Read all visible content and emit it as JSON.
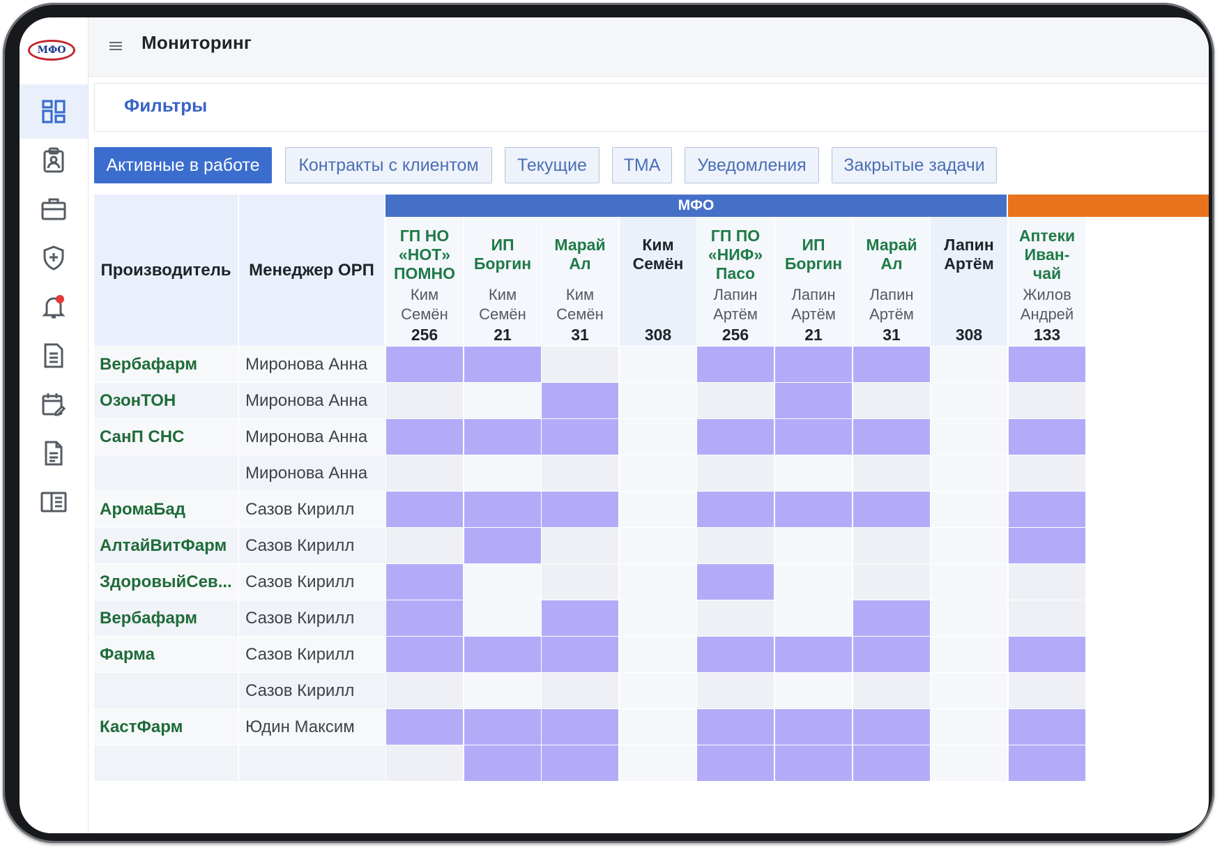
{
  "brand": {
    "logo_text": "МФО"
  },
  "header": {
    "title": "Мониторинг"
  },
  "filters": {
    "label": "Фильтры"
  },
  "tabs": [
    {
      "label": "Активные в работе",
      "active": true
    },
    {
      "label": "Контракты с клиентом",
      "active": false
    },
    {
      "label": "Текущие",
      "active": false
    },
    {
      "label": "ТМА",
      "active": false
    },
    {
      "label": "Уведомления",
      "active": false
    },
    {
      "label": "Закрытые задачи",
      "active": false
    }
  ],
  "sidebar": {
    "items": [
      {
        "icon": "dashboard-icon",
        "active": true
      },
      {
        "icon": "clipboard-user-icon",
        "active": false
      },
      {
        "icon": "briefcase-icon",
        "active": false
      },
      {
        "icon": "shield-plus-icon",
        "active": false
      },
      {
        "icon": "bell-icon",
        "active": false,
        "badge": true
      },
      {
        "icon": "document-icon",
        "active": false
      },
      {
        "icon": "calendar-edit-icon",
        "active": false
      },
      {
        "icon": "file-text-icon",
        "active": false
      },
      {
        "icon": "book-open-icon",
        "active": false
      }
    ]
  },
  "colors": {
    "accent": "#3b6dce",
    "group_mfo": "#4570c8",
    "group_next": "#e8731c",
    "marked_cell": "#b3abf8",
    "producer_text": "#1f6b3a"
  },
  "table": {
    "headers": {
      "producer": "Производитель",
      "manager": "Менеджер ОРП"
    },
    "groups": [
      {
        "label": "МФО",
        "color": "#4570c8"
      },
      {
        "label": "",
        "color": "#e8731c"
      }
    ],
    "columns": [
      {
        "name": "ГП НО\n«НОТ»\nПОМНО",
        "sub": "Ким\nСемён",
        "count": "256",
        "total": false
      },
      {
        "name": "ИП\nБоргин",
        "sub": "Ким\nСемён",
        "count": "21",
        "total": false
      },
      {
        "name": "Марай\nАл",
        "sub": "Ким\nСемён",
        "count": "31",
        "total": false
      },
      {
        "name": "Ким\nСемён",
        "sub": "",
        "count": "308",
        "total": true
      },
      {
        "name": "ГП ПО\n«НИФ»\nПасо",
        "sub": "Лапин\nАртём",
        "count": "256",
        "total": false
      },
      {
        "name": "ИП\nБоргин",
        "sub": "Лапин\nАртём",
        "count": "21",
        "total": false
      },
      {
        "name": "Марай\nАл",
        "sub": "Лапин\nАртём",
        "count": "31",
        "total": false
      },
      {
        "name": "Лапин\nАртём",
        "sub": "",
        "count": "308",
        "total": true
      },
      {
        "name": "Аптеки\nИван-\nчай",
        "sub": "Жилов\nАндрей",
        "count": "133",
        "total": false
      }
    ],
    "rows": [
      {
        "producer": "Вербафарм",
        "manager": "Миронова Анна",
        "marks": [
          1,
          1,
          0,
          0,
          1,
          1,
          1,
          0,
          1
        ]
      },
      {
        "producer": "ОзонТОН",
        "manager": "Миронова Анна",
        "marks": [
          0,
          0,
          1,
          0,
          0,
          1,
          0,
          0,
          0
        ]
      },
      {
        "producer": "СанП СНС",
        "manager": "Миронова Анна",
        "marks": [
          1,
          1,
          1,
          0,
          1,
          1,
          1,
          0,
          1
        ]
      },
      {
        "producer": "",
        "manager": "Миронова Анна",
        "marks": [
          0,
          0,
          0,
          0,
          0,
          0,
          0,
          0,
          0
        ]
      },
      {
        "producer": "АромаБад",
        "manager": "Сазов Кирилл",
        "marks": [
          1,
          1,
          1,
          0,
          1,
          1,
          1,
          0,
          1
        ]
      },
      {
        "producer": "АлтайВитФарм",
        "manager": "Сазов Кирилл",
        "marks": [
          0,
          1,
          0,
          0,
          0,
          0,
          0,
          0,
          1
        ]
      },
      {
        "producer": "ЗдоровыйСев...",
        "manager": "Сазов Кирилл",
        "marks": [
          1,
          0,
          0,
          0,
          1,
          0,
          0,
          0,
          0
        ]
      },
      {
        "producer": "Вербафарм",
        "manager": "Сазов Кирилл",
        "marks": [
          1,
          0,
          1,
          0,
          0,
          0,
          1,
          0,
          0
        ]
      },
      {
        "producer": "Фарма",
        "manager": "Сазов Кирилл",
        "marks": [
          1,
          1,
          1,
          0,
          1,
          1,
          1,
          0,
          1
        ]
      },
      {
        "producer": "",
        "manager": "Сазов Кирилл",
        "marks": [
          0,
          0,
          0,
          0,
          0,
          0,
          0,
          0,
          0
        ]
      },
      {
        "producer": "КастФарм",
        "manager": "Юдин Максим",
        "marks": [
          1,
          1,
          1,
          0,
          1,
          1,
          1,
          0,
          1
        ]
      },
      {
        "producer": "",
        "manager": "",
        "marks": [
          0,
          1,
          1,
          0,
          1,
          1,
          1,
          0,
          1
        ]
      }
    ]
  }
}
